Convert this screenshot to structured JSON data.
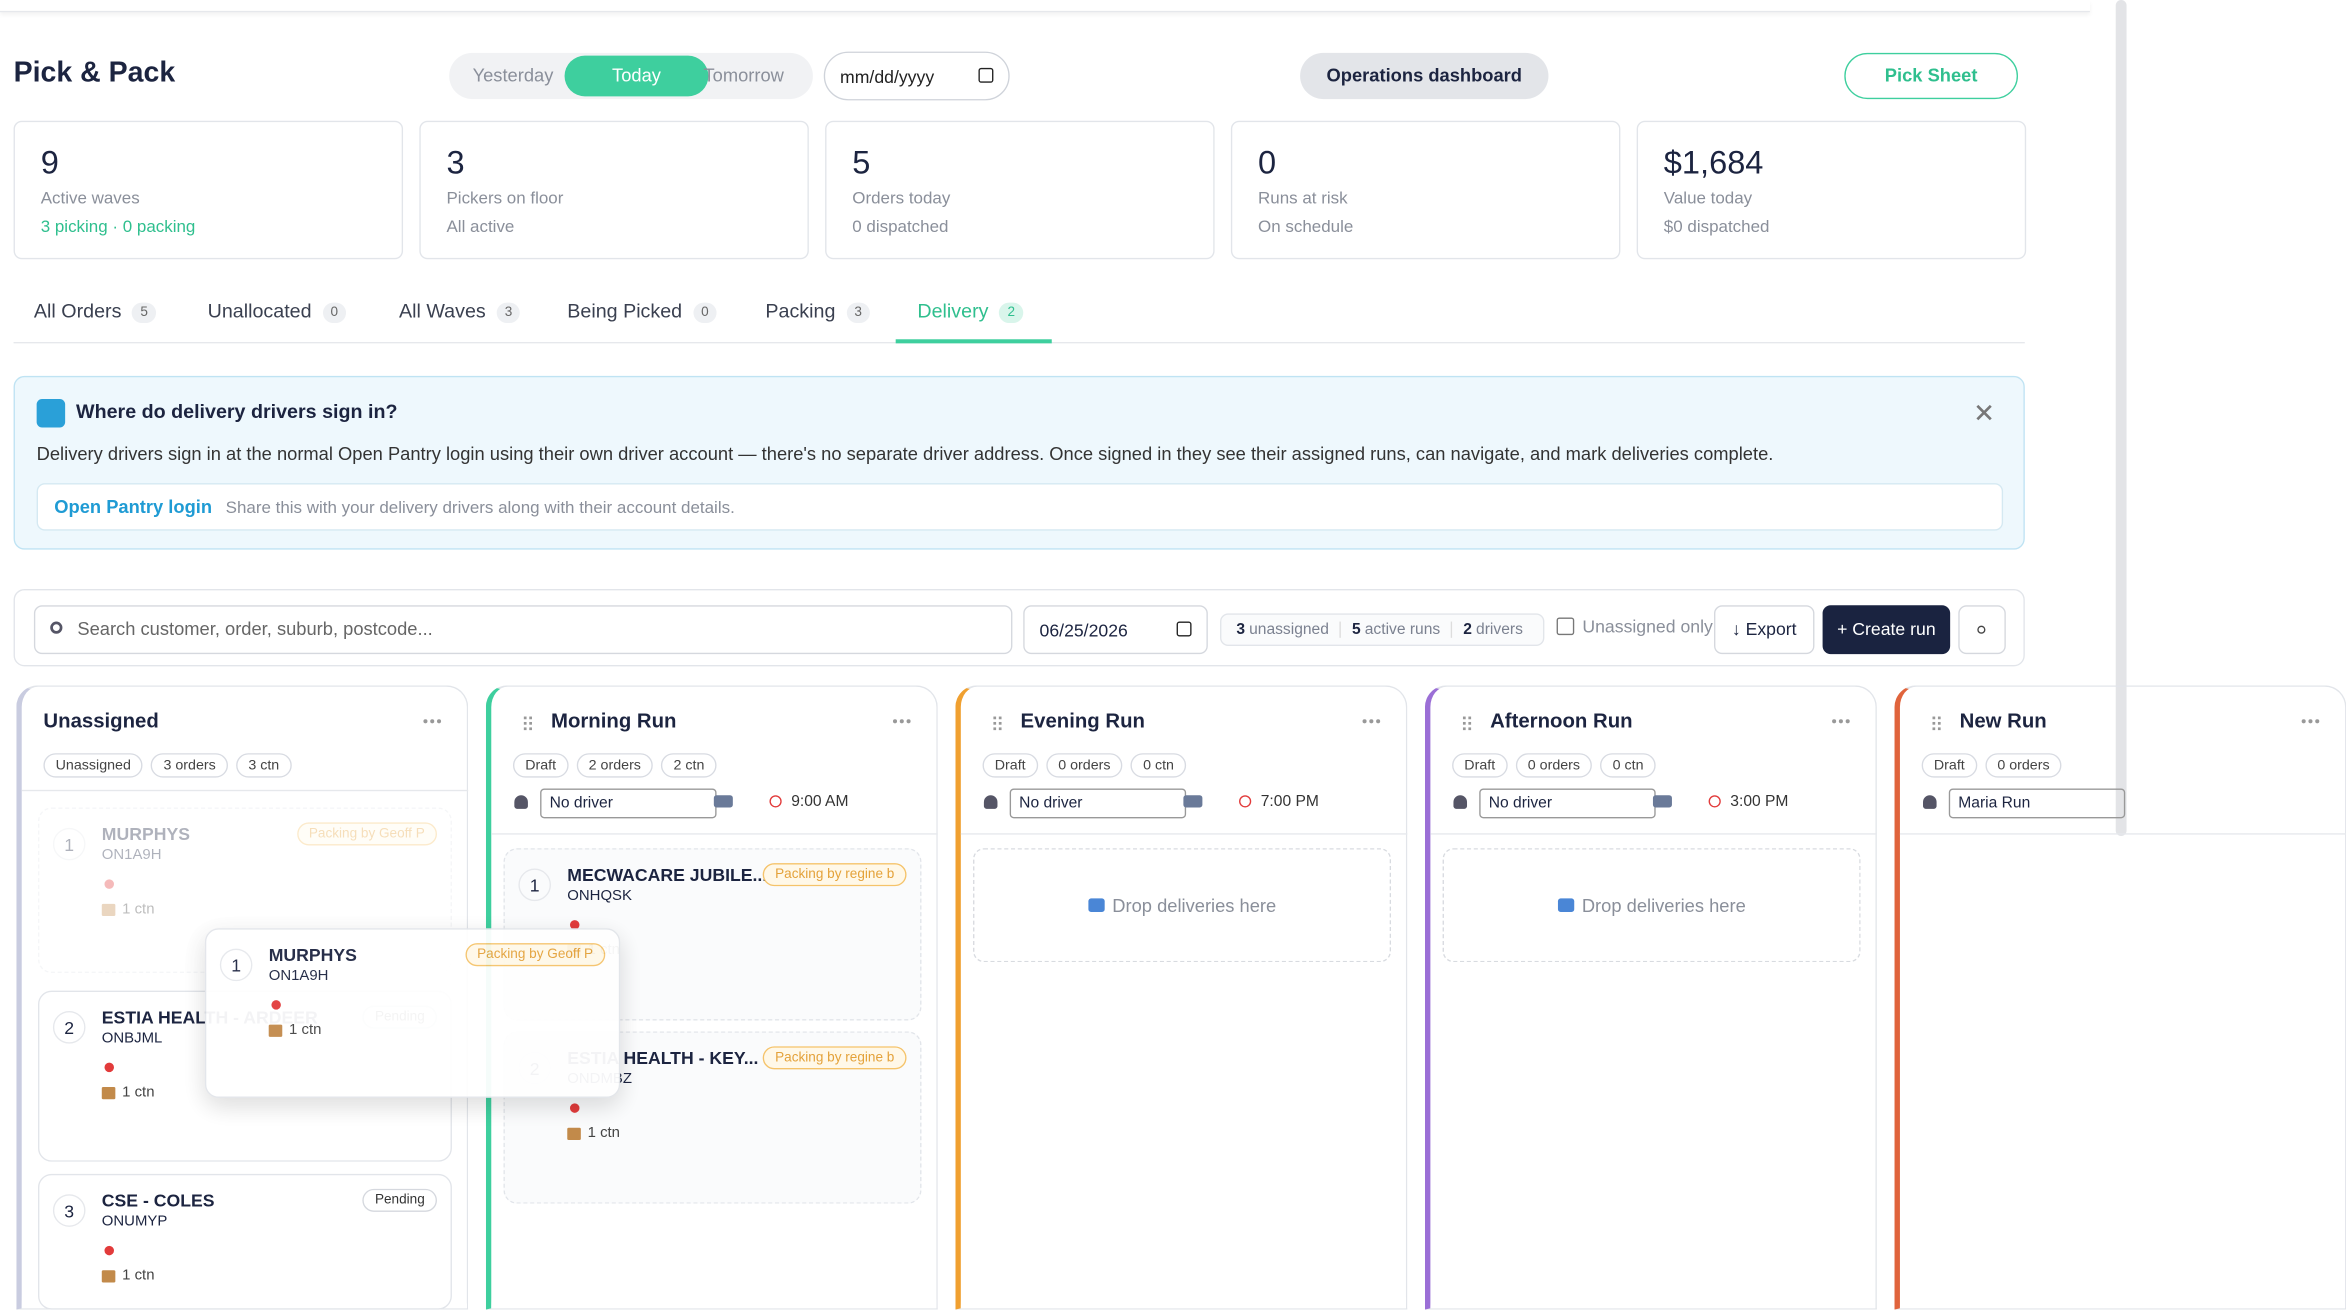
{
  "header": {
    "title": "Pick & Pack",
    "day_toggle": [
      "Yesterday",
      "Today",
      "Tomorrow"
    ],
    "active_day": 1,
    "date_placeholder": "mm/dd/yyyy",
    "buttons": [
      "Operations dashboard",
      "Pick Sheet"
    ]
  },
  "stats": [
    {
      "value": "9",
      "label": "Active waves",
      "sub": "3 picking · 0 packing"
    },
    {
      "value": "3",
      "label": "Pickers on floor",
      "sub": "All active"
    },
    {
      "value": "5",
      "label": "Orders today",
      "sub": "0 dispatched"
    },
    {
      "value": "0",
      "label": "Runs at risk",
      "sub": "On schedule"
    },
    {
      "value": "$1,684",
      "label": "Value today",
      "sub": "$0 dispatched"
    }
  ],
  "tabs": [
    {
      "label": "All Orders",
      "count": "5"
    },
    {
      "label": "Unallocated",
      "count": "0"
    },
    {
      "label": "All Waves",
      "count": "3"
    },
    {
      "label": "Being Picked",
      "count": "0"
    },
    {
      "label": "Packing",
      "count": "3"
    },
    {
      "label": "Delivery",
      "count": "2"
    }
  ],
  "active_tab": 5,
  "info": {
    "title": "Where do delivery drivers sign in?",
    "body": "Delivery drivers sign in at the normal Open Pantry login using their own driver account — there's no separate driver address. Once signed in they see their assigned runs, can navigate, and mark deliveries complete.",
    "link": "Open Pantry login",
    "link_note": "Share this with your delivery drivers along with their account details."
  },
  "toolbar": {
    "search_placeholder": "Search customer, order, suburb, postcode...",
    "date": "06/25/2026",
    "summary": [
      {
        "n": "3",
        "label": "unassigned"
      },
      {
        "n": "5",
        "label": "active runs"
      },
      {
        "n": "2",
        "label": "drivers"
      }
    ],
    "checkbox": "Unassigned only",
    "export": "↓ Export",
    "create": "+ Create run"
  },
  "columns": [
    {
      "title": "Unassigned",
      "badges": [
        "Unassigned",
        "3 orders",
        "3 ctn"
      ],
      "cards": [
        {
          "num": "1",
          "name": "MURPHYS",
          "code": "ON1A9H",
          "status": "Packing by Geoff P",
          "ctn": "1 ctn"
        },
        {
          "num": "2",
          "name": "ESTIA HEALTH - ARDEER",
          "code": "ONBJML",
          "status": "Pending",
          "ctn": "1 ctn"
        },
        {
          "num": "3",
          "name": "CSE - COLES",
          "code": "ONUMYP",
          "status": "Pending",
          "ctn": "1 ctn"
        }
      ]
    },
    {
      "title": "Morning Run",
      "badges": [
        "Draft",
        "2 orders",
        "2 ctn"
      ],
      "driver": "No driver",
      "time": "9:00 AM",
      "cards": [
        {
          "num": "1",
          "name": "MECWACARE JUBILE...",
          "code": "ONHQSK",
          "status": "Packing by regine b",
          "ctn": "1 ctn"
        },
        {
          "num": "2",
          "name": "ESTIA HEALTH - KEY...",
          "code": "ONDMBZ",
          "status": "Packing by regine b",
          "ctn": "1 ctn"
        }
      ]
    },
    {
      "title": "Evening Run",
      "badges": [
        "Draft",
        "0 orders",
        "0 ctn"
      ],
      "driver": "No driver",
      "time": "7:00 PM",
      "empty": "Drop deliveries here"
    },
    {
      "title": "Afternoon Run",
      "badges": [
        "Draft",
        "0 orders",
        "0 ctn"
      ],
      "driver": "No driver",
      "time": "3:00 PM",
      "empty": "Drop deliveries here"
    },
    {
      "title": "New Run",
      "badges": [
        "Draft",
        "0 orders"
      ],
      "driver": "Maria Run"
    }
  ],
  "drag_card": {
    "num": "1",
    "name": "MURPHYS",
    "code": "ON1A9H",
    "status": "Packing by Geoff P",
    "ctn": "1 ctn"
  }
}
